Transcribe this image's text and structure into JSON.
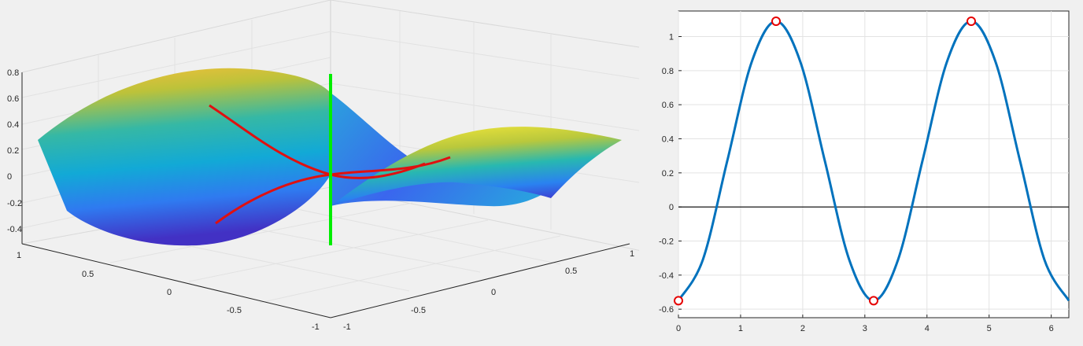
{
  "surface_plot": {
    "z_ticks": [
      "0.8",
      "0.6",
      "0.4",
      "0.2",
      "0",
      "-0.2",
      "-0.4"
    ],
    "left_axis_ticks": [
      "1",
      "0.5",
      "0",
      "-0.5",
      "-1"
    ],
    "right_axis_ticks": [
      "-1",
      "-0.5",
      "0",
      "0.5",
      "1"
    ],
    "colors": {
      "surface_low": "#3e26a8",
      "surface_mid": "#1fb3b8",
      "surface_high": "#f9fb15",
      "curves": "#e01010",
      "vertical_line": "#00ee00"
    },
    "colormap": "parula"
  },
  "chart_data": {
    "type": "line",
    "x": [
      0,
      0.3927,
      0.7854,
      1.1781,
      1.5708,
      1.9635,
      2.3562,
      2.7489,
      3.1416,
      3.5343,
      3.927,
      4.3197,
      4.7124,
      5.1051,
      5.4978,
      5.8905,
      6.2832
    ],
    "y": [
      -0.55,
      -0.31,
      0.27,
      0.85,
      1.09,
      0.85,
      0.27,
      -0.31,
      -0.55,
      -0.31,
      0.27,
      0.85,
      1.09,
      0.85,
      0.27,
      -0.31,
      -0.55
    ],
    "markers": {
      "x": [
        0,
        1.5708,
        3.1416,
        4.7124
      ],
      "y": [
        -0.55,
        1.09,
        -0.55,
        1.09
      ]
    },
    "x_ticks": [
      "0",
      "1",
      "2",
      "3",
      "4",
      "5",
      "6"
    ],
    "y_ticks": [
      "1",
      "0.8",
      "0.6",
      "0.4",
      "0.2",
      "0",
      "-0.2",
      "-0.4",
      "-0.6"
    ],
    "xlim": [
      0,
      6.2832
    ],
    "ylim": [
      -0.65,
      1.15
    ],
    "grid": true,
    "zero_line": true,
    "colors": {
      "line": "#0072bd",
      "marker": "#e60000",
      "zero_line": "#000000"
    }
  }
}
